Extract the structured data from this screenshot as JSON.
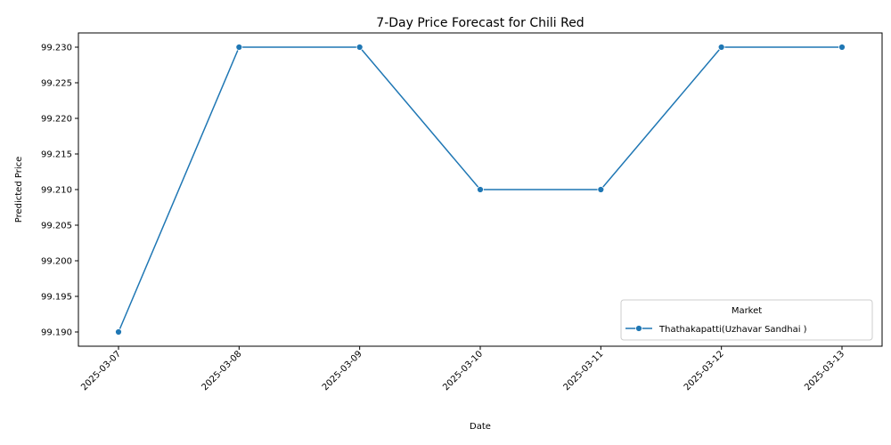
{
  "chart_data": {
    "type": "line",
    "title": "7-Day Price Forecast for Chili Red",
    "xlabel": "Date",
    "ylabel": "Predicted Price",
    "x": [
      "2025-03-07",
      "2025-03-08",
      "2025-03-09",
      "2025-03-10",
      "2025-03-11",
      "2025-03-12",
      "2025-03-13"
    ],
    "series": [
      {
        "name": "Thathakapatti(Uzhavar Sandhai )",
        "values": [
          99.19,
          99.23,
          99.23,
          99.21,
          99.21,
          99.23,
          99.23
        ],
        "color": "#1f77b4",
        "marker": "circle"
      }
    ],
    "yticks": [
      "99.190",
      "99.195",
      "99.200",
      "99.205",
      "99.210",
      "99.215",
      "99.220",
      "99.225",
      "99.230"
    ],
    "ylim": [
      99.188,
      99.232
    ],
    "grid": false,
    "legend": {
      "title": "Market",
      "placement": "lower-right"
    }
  }
}
